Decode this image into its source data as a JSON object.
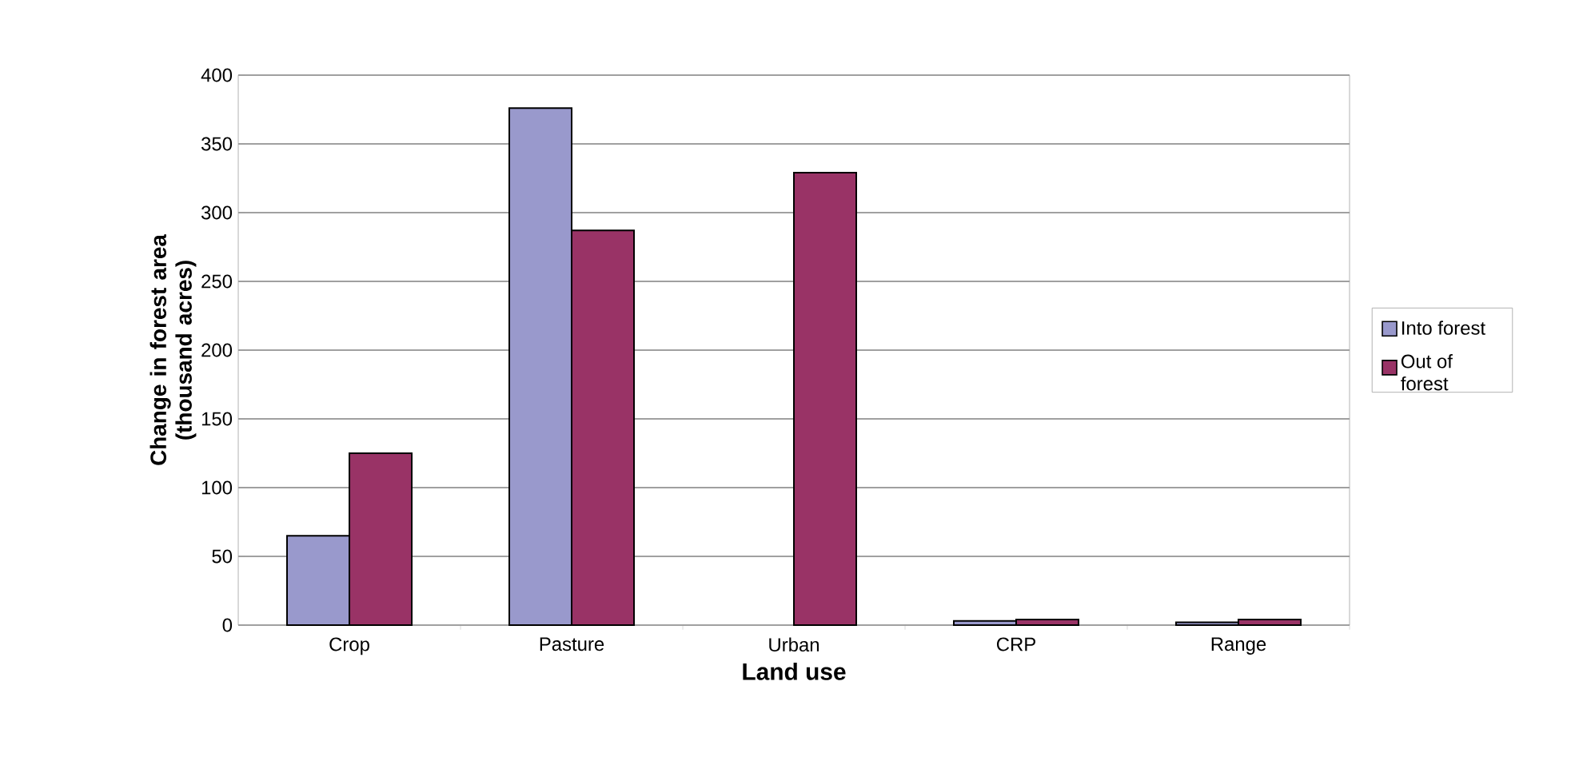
{
  "chart_data": {
    "type": "bar",
    "xlabel": "Land use",
    "ylabel": "Change in forest area (thousand acres)",
    "categories": [
      "Crop",
      "Pasture",
      "Urban",
      "CRP",
      "Range"
    ],
    "series": [
      {
        "name": "Into forest",
        "color": "#9999cc",
        "values": [
          65,
          376,
          null,
          3,
          2
        ]
      },
      {
        "name": "Out of forest",
        "color": "#993366",
        "values": [
          125,
          287,
          329,
          4,
          4
        ]
      }
    ],
    "ylim": [
      0,
      400
    ],
    "yticks": [
      0,
      50,
      100,
      150,
      200,
      250,
      300,
      350,
      400
    ],
    "grid": "y",
    "legend": "right"
  }
}
